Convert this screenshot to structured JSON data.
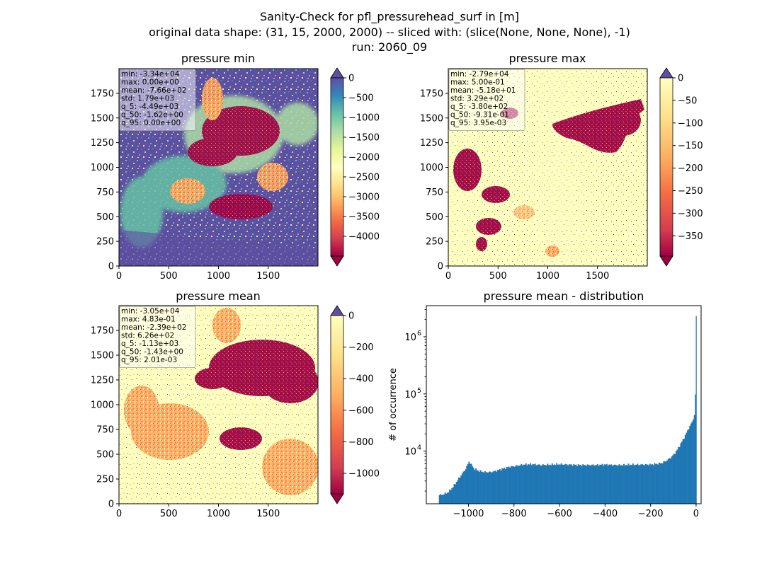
{
  "suptitle": [
    "Sanity-Check for pfl_pressurehead_surf in [m]",
    "original data shape: (31, 15, 2000, 2000) -- sliced with: (slice(None, None, None), -1)",
    "run: 2060_09"
  ],
  "colors": {
    "spectral_low": "#9e0142",
    "spectral_high": "#5e4fa2",
    "hist_bar": "#1f77b4",
    "stats_box": "#ffffff"
  },
  "chart_data": [
    {
      "type": "heatmap",
      "name": "pressure min",
      "title": "pressure min",
      "colormap": "Spectral",
      "xticks": [
        0,
        500,
        1000,
        1500
      ],
      "yticks": [
        0,
        250,
        500,
        750,
        1000,
        1250,
        1500,
        1750
      ],
      "xlim": [
        0,
        2000
      ],
      "ylim": [
        0,
        2000
      ],
      "colorbar": {
        "range": [
          -4500,
          0
        ],
        "ticks": [
          0,
          -500,
          -1000,
          -1500,
          -2000,
          -2500,
          -3000,
          -3500,
          -4000
        ],
        "extend": "both"
      },
      "stats": [
        "min: -3.34e+04",
        "max: 0.00e+00",
        "mean: -7.66e+02",
        "std: 1.79e+03",
        "q_5: -4.49e+03",
        "q_50: -1.62e+00",
        "q_95: 0.00e+00"
      ]
    },
    {
      "type": "heatmap",
      "name": "pressure max",
      "title": "pressure max",
      "colormap": "Spectral",
      "xticks": [
        0,
        500,
        1000,
        1500
      ],
      "yticks": [
        0,
        250,
        500,
        750,
        1000,
        1250,
        1500,
        1750
      ],
      "xlim": [
        0,
        2000
      ],
      "ylim": [
        0,
        2000
      ],
      "colorbar": {
        "range": [
          -395,
          0
        ],
        "ticks": [
          0,
          -50,
          -100,
          -150,
          -200,
          -250,
          -300,
          -350
        ],
        "extend": "both"
      },
      "stats": [
        "min: -2.79e+04",
        "max: 5.00e-01",
        "mean: -5.18e+01",
        "std: 3.29e+02",
        "q_5: -3.80e+02",
        "q_50: -9.31e-01",
        "q_95: 3.95e-03"
      ]
    },
    {
      "type": "heatmap",
      "name": "pressure mean",
      "title": "pressure mean",
      "colormap": "Spectral",
      "xticks": [
        0,
        500,
        1000,
        1500
      ],
      "yticks": [
        0,
        250,
        500,
        750,
        1000,
        1250,
        1500,
        1750
      ],
      "xlim": [
        0,
        2000
      ],
      "ylim": [
        0,
        2000
      ],
      "colorbar": {
        "range": [
          -1130,
          0
        ],
        "ticks": [
          0,
          -200,
          -400,
          -600,
          -800,
          -1000
        ],
        "extend": "both"
      },
      "stats": [
        "min: -3.05e+04",
        "max: 4.83e-01",
        "mean: -2.39e+02",
        "std: 6.26e+02",
        "q_5: -1.13e+03",
        "q_50: -1.43e+00",
        "q_95: 2.01e-03"
      ]
    },
    {
      "type": "bar",
      "name": "pressure mean - distribution",
      "title": "pressure mean - distribution",
      "ylabel": "# of occurrence",
      "yscale": "log",
      "xlim": [
        -1185,
        22
      ],
      "ylim": [
        1200,
        3500000
      ],
      "xticks": [
        -1000,
        -800,
        -600,
        -400,
        -200,
        0
      ],
      "yticks": [
        10000,
        100000,
        1000000
      ],
      "ytick_labels": [
        [
          "10",
          "4"
        ],
        [
          "10",
          "5"
        ],
        [
          "10",
          "6"
        ]
      ],
      "bin_width": 5,
      "hist_profile": [
        [
          -1130,
          1700
        ],
        [
          -1110,
          1750
        ],
        [
          -1090,
          1900
        ],
        [
          -1070,
          2300
        ],
        [
          -1050,
          3000
        ],
        [
          -1030,
          3900
        ],
        [
          -1015,
          4700
        ],
        [
          -1005,
          5600
        ],
        [
          -998,
          6600
        ],
        [
          -990,
          6000
        ],
        [
          -975,
          4900
        ],
        [
          -955,
          4500
        ],
        [
          -930,
          4300
        ],
        [
          -900,
          4300
        ],
        [
          -880,
          4500
        ],
        [
          -850,
          4900
        ],
        [
          -820,
          5300
        ],
        [
          -790,
          5500
        ],
        [
          -760,
          5800
        ],
        [
          -720,
          5900
        ],
        [
          -680,
          5700
        ],
        [
          -640,
          5800
        ],
        [
          -600,
          5900
        ],
        [
          -560,
          5800
        ],
        [
          -520,
          5700
        ],
        [
          -480,
          5700
        ],
        [
          -440,
          5700
        ],
        [
          -400,
          5800
        ],
        [
          -360,
          5700
        ],
        [
          -320,
          5700
        ],
        [
          -280,
          5800
        ],
        [
          -240,
          5800
        ],
        [
          -200,
          5800
        ],
        [
          -170,
          6000
        ],
        [
          -150,
          6200
        ],
        [
          -130,
          6800
        ],
        [
          -110,
          7800
        ],
        [
          -95,
          9000
        ],
        [
          -80,
          11000
        ],
        [
          -65,
          14000
        ],
        [
          -50,
          18000
        ],
        [
          -35,
          24000
        ],
        [
          -22,
          30000
        ],
        [
          -12,
          37000
        ],
        [
          -6,
          45000
        ],
        [
          -3,
          50000
        ],
        [
          0,
          2300000
        ]
      ]
    }
  ]
}
